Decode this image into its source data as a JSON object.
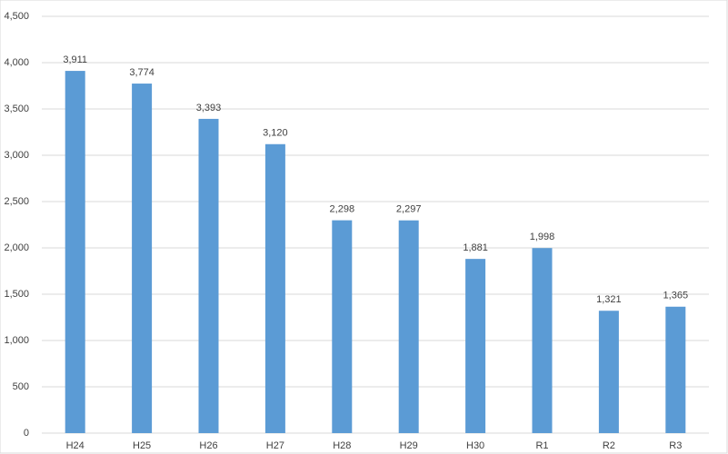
{
  "chart_data": {
    "type": "bar",
    "categories": [
      "H24",
      "H25",
      "H26",
      "H27",
      "H28",
      "H29",
      "H30",
      "R1",
      "R2",
      "R3"
    ],
    "values": [
      3911,
      3774,
      3393,
      3120,
      2298,
      2297,
      1881,
      1998,
      1321,
      1365
    ],
    "value_labels": [
      "3,911",
      "3,774",
      "3,393",
      "3,120",
      "2,298",
      "2,297",
      "1,881",
      "1,998",
      "1,321",
      "1,365"
    ],
    "color": "#5b9bd5",
    "ylim": [
      0,
      4500
    ],
    "yticks": [
      0,
      500,
      {
        "value": 1000,
        "label": "1,000"
      },
      {
        "value": 1500,
        "label": "1,500"
      },
      {
        "value": 2000,
        "label": "2,000"
      },
      {
        "value": 2500,
        "label": "2,500"
      },
      {
        "value": 3000,
        "label": "3,000"
      },
      {
        "value": 3500,
        "label": "3,500"
      },
      {
        "value": 4000,
        "label": "4,000"
      },
      {
        "value": 4500,
        "label": "4,500"
      }
    ],
    "grid": true
  }
}
